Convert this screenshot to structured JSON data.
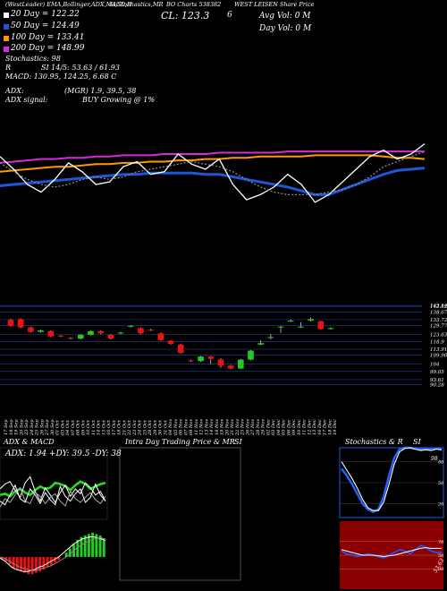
{
  "header": {
    "row1_left": "(WestLeader) EMA,Bollinger,ADX,MACD,R",
    "row1_mid": "SI,Stochastics,MR",
    "row1_right": "BO Charts 538382",
    "row1_far": "WEST LEISEN Share Price",
    "cl_label": "CL: 123.3",
    "cl_num": "6",
    "avg_vol": "Avg Vol: 0  M",
    "day_vol": "Day Vol: 0  M",
    "legend": [
      {
        "label": "20  Day = 122.22",
        "color": "#ffffff"
      },
      {
        "label": "50  Day = 124.49",
        "color": "#1e56d8"
      },
      {
        "label": "100  Day = 133.41",
        "color": "#ff9900"
      },
      {
        "label": "200  Day = 148.99",
        "color": "#d62bd6"
      }
    ],
    "stoch": "Stochastics: 98",
    "rsi_prefix": "R",
    "rsi": "SI 14/5: 53.63 / 61.93",
    "macd": "MACD: 130.95,  124.25,  6.68  C",
    "adx": "ADX:",
    "adx_mid": "(MGR) 1.9,  39.5,  38",
    "adx_signal": "ADX  signal:",
    "buy": "BUY Growing @ 1%"
  },
  "colors": {
    "up": "#22cc22",
    "down": "#ee1111",
    "grid": "#1f3fb0"
  },
  "chart_data": [
    {
      "type": "line",
      "panel": "moving averages",
      "ylim": [
        0,
        100
      ],
      "series": [
        {
          "color": "#d62bd6",
          "values": [
            55,
            56,
            57,
            58,
            58,
            59,
            59,
            60,
            60,
            61,
            61,
            61,
            62,
            62,
            62,
            62,
            63,
            63,
            63,
            63,
            63,
            64,
            64,
            64,
            64,
            64,
            64,
            64,
            64,
            64,
            64,
            64
          ]
        },
        {
          "color": "#ff9900",
          "values": [
            48,
            49,
            50,
            51,
            52,
            52,
            53,
            54,
            54,
            55,
            55,
            56,
            56,
            57,
            57,
            58,
            58,
            59,
            59,
            60,
            60,
            60,
            60,
            61,
            61,
            61,
            61,
            61,
            60,
            59,
            59,
            58
          ]
        },
        {
          "color": "#1e56d8",
          "values": [
            37,
            38,
            39,
            40,
            41,
            42,
            43,
            44,
            45,
            46,
            46,
            47,
            47,
            47,
            47,
            46,
            46,
            44,
            42,
            40,
            38,
            36,
            33,
            30,
            30,
            34,
            38,
            42,
            46,
            49,
            50,
            51
          ]
        },
        {
          "color": "#ffffff",
          "values": [
            60,
            50,
            38,
            32,
            42,
            55,
            48,
            38,
            40,
            52,
            56,
            46,
            48,
            62,
            54,
            50,
            58,
            38,
            26,
            30,
            36,
            46,
            38,
            24,
            30,
            40,
            50,
            60,
            65,
            58,
            62,
            70
          ]
        },
        {
          "color": "#888888",
          "values": [
            55,
            48,
            42,
            38,
            36,
            38,
            42,
            44,
            42,
            44,
            48,
            50,
            52,
            54,
            56,
            54,
            52,
            48,
            42,
            36,
            32,
            30,
            30,
            30,
            32,
            34,
            38,
            44,
            52,
            56,
            60,
            64
          ]
        }
      ]
    },
    {
      "type": "candlestick",
      "panel": "price",
      "x": [
        "17 Sep",
        "18 Sep",
        "19 Sep",
        "20 Sep",
        "23 Sep",
        "24 Sep",
        "25 Sep",
        "26 Sep",
        "27 Sep",
        "30 Sep",
        "01 Oct",
        "03 Oct",
        "04 Oct",
        "07 Oct",
        "08 Oct",
        "09 Oct",
        "10 Oct",
        "11 Oct",
        "14 Oct",
        "15 Oct",
        "16 Oct",
        "17 Oct",
        "18 Oct",
        "21 Oct",
        "22 Oct",
        "23 Oct",
        "24 Oct",
        "25 Oct",
        "28 Oct",
        "29 Oct",
        "30 Oct",
        "31 Oct",
        "04 Nov",
        "05 Nov",
        "06 Nov",
        "07 Nov",
        "08 Nov",
        "11 Nov",
        "12 Nov",
        "13 Nov",
        "14 Nov",
        "18 Nov",
        "19 Nov",
        "20 Nov",
        "21 Nov",
        "22 Nov",
        "25 Nov",
        "26 Nov",
        "27 Nov",
        "28 Nov",
        "29 Nov",
        "02 Dec",
        "03 Dec",
        "04 Dec",
        "05 Dec",
        "06 Dec",
        "09 Dec",
        "10 Dec",
        "11 Dec",
        "12 Dec",
        "13 Dec",
        "16 Dec",
        "17 Dec",
        "18 Dec",
        "19 Dec"
      ],
      "y_ticks": [
        143.14,
        142.52,
        138.67,
        133.72,
        129.77,
        123.63,
        118.9,
        113.91,
        109.96,
        104,
        99.05,
        93.61,
        90.28
      ],
      "ylim": [
        90,
        145
      ],
      "candles": [
        {
          "o": 133.5,
          "c": 129.5,
          "h": 134.2,
          "l": 129.0
        },
        {
          "o": 134.0,
          "c": 128.5,
          "h": 134.5,
          "l": 128.0
        },
        {
          "o": 128.5,
          "c": 125.5,
          "h": 129.0,
          "l": 125.0
        },
        {
          "o": 125.5,
          "c": 126.5,
          "h": 127.0,
          "l": 125.0
        },
        {
          "o": 126.0,
          "c": 122.5,
          "h": 126.5,
          "l": 122.0
        },
        {
          "o": 123.0,
          "c": 122.5,
          "h": 123.5,
          "l": 122.0
        },
        {
          "o": 121.5,
          "c": 121.0,
          "h": 122.0,
          "l": 120.5
        },
        {
          "o": 121.0,
          "c": 123.5,
          "h": 124.0,
          "l": 120.5
        },
        {
          "o": 123.5,
          "c": 126.0,
          "h": 126.5,
          "l": 123.0
        },
        {
          "o": 126.0,
          "c": 124.5,
          "h": 126.5,
          "l": 124.0
        },
        {
          "o": 123.5,
          "c": 121.0,
          "h": 124.0,
          "l": 120.5
        },
        {
          "o": 124.5,
          "c": 125.0,
          "h": 125.5,
          "l": 124.0
        },
        {
          "o": 129.0,
          "c": 129.5,
          "h": 130.0,
          "l": 128.5
        },
        {
          "o": 128.0,
          "c": 124.5,
          "h": 128.5,
          "l": 124.0
        },
        {
          "o": 127.0,
          "c": 126.5,
          "h": 127.5,
          "l": 126.0
        },
        {
          "o": 124.5,
          "c": 120.0,
          "h": 125.0,
          "l": 119.5
        },
        {
          "o": 119.5,
          "c": 117.5,
          "h": 120.0,
          "l": 117.0
        },
        {
          "o": 117.0,
          "c": 111.5,
          "h": 117.5,
          "l": 111.0
        },
        {
          "o": 106.5,
          "c": 106.0,
          "h": 107.0,
          "l": 105.5
        },
        {
          "o": 106.0,
          "c": 109.0,
          "h": 109.5,
          "l": 105.5
        },
        {
          "o": 109.0,
          "c": 107.5,
          "h": 109.5,
          "l": 104.0
        },
        {
          "o": 107.0,
          "c": 103.0,
          "h": 108.0,
          "l": 101.5
        },
        {
          "o": 103.0,
          "c": 101.0,
          "h": 103.5,
          "l": 100.5
        },
        {
          "o": 101.0,
          "c": 107.0,
          "h": 107.5,
          "l": 100.5
        },
        {
          "o": 107.0,
          "c": 113.0,
          "h": 113.5,
          "l": 106.5
        },
        {
          "o": 117.0,
          "c": 118.0,
          "h": 120.0,
          "l": 116.5
        },
        {
          "o": 121.5,
          "c": 122.0,
          "h": 124.0,
          "l": 120.5
        },
        {
          "o": 128.5,
          "c": 129.0,
          "h": 129.5,
          "l": 125.0
        },
        {
          "o": 132.5,
          "c": 133.0,
          "h": 134.0,
          "l": 132.0
        },
        {
          "o": 128.5,
          "c": 129.0,
          "h": 132.0,
          "l": 128.0
        },
        {
          "o": 133.0,
          "c": 134.0,
          "h": 135.0,
          "l": 132.5
        },
        {
          "o": 132.5,
          "c": 127.5,
          "h": 133.0,
          "l": 127.0
        },
        {
          "o": 127.5,
          "c": 128.0,
          "h": 128.5,
          "l": 127.0
        }
      ]
    },
    {
      "type": "line",
      "panel": "ADX & MACD",
      "title_left": "ADX  & MACD",
      "label": "ADX: 1.94  +DY: 39.5  -DY: 38",
      "ylim": [
        0,
        100
      ],
      "series": [
        {
          "color": "#22dd22",
          "values": [
            40,
            42,
            38,
            46,
            50,
            44,
            40,
            48,
            54,
            50,
            52,
            60,
            58,
            55,
            48,
            56,
            62,
            58,
            50,
            54,
            58,
            60
          ]
        },
        {
          "color": "#ffffff",
          "values": [
            50,
            58,
            62,
            48,
            36,
            60,
            70,
            46,
            30,
            52,
            40,
            28,
            44,
            56,
            38,
            50,
            42,
            60,
            52,
            40,
            46,
            30
          ]
        },
        {
          "color": "#aaaaaa",
          "values": [
            20,
            34,
            28,
            40,
            52,
            30,
            26,
            44,
            38,
            26,
            36,
            42,
            30,
            22,
            46,
            34,
            28,
            36,
            44,
            32,
            26,
            38
          ]
        },
        {
          "color": "#ffffff",
          "values": [
            30,
            24,
            40,
            56,
            34,
            28,
            50,
            40,
            26,
            44,
            32,
            24,
            54,
            38,
            30,
            42,
            50,
            28,
            36,
            58,
            40,
            30
          ]
        }
      ],
      "macd_hist": [
        -2,
        -3,
        -5,
        -8,
        -9,
        -10,
        -11,
        -12,
        -12,
        -11,
        -10,
        -9,
        -7,
        -6,
        -4,
        -2,
        0,
        3,
        6,
        9,
        12,
        14,
        15,
        16,
        17,
        16,
        15,
        12
      ],
      "macd_lines": [
        {
          "color": "#ffffff",
          "values": [
            -1,
            -3,
            -6,
            -9,
            -11,
            -12,
            -13,
            -13,
            -12,
            -11,
            -9,
            -8,
            -6,
            -4,
            -2,
            0,
            3,
            6,
            9,
            12,
            14,
            16,
            17,
            18,
            18,
            17,
            16,
            15
          ]
        },
        {
          "color": "#888888",
          "values": [
            0,
            -1,
            -3,
            -5,
            -7,
            -9,
            -10,
            -11,
            -12,
            -12,
            -11,
            -10,
            -9,
            -8,
            -6,
            -4,
            -2,
            0,
            3,
            6,
            9,
            11,
            13,
            15,
            16,
            17,
            17,
            16
          ]
        }
      ]
    },
    {
      "type": "line",
      "panel": "Intra Day Trading Price & MRSI",
      "title": "Intra  Day Trading Price  & MR",
      "title2": "SI",
      "series": []
    },
    {
      "type": "line",
      "panel": "Stochastics & RSI",
      "title": "Stochastics & R",
      "title2": "SI",
      "stoch_ticks": [
        "20",
        "50",
        "80"
      ],
      "stoch_value_label": "98",
      "rsi_ticks": [
        "30",
        "50",
        "70"
      ],
      "rsi_value_label": "53.63",
      "ylim": [
        0,
        100
      ],
      "series": [
        {
          "color": "#2266ff",
          "values": [
            70,
            60,
            48,
            34,
            20,
            12,
            8,
            12,
            30,
            60,
            85,
            98,
            100,
            100,
            99,
            98,
            98,
            98,
            99,
            98
          ]
        },
        {
          "color": "#ffffff",
          "values": [
            80,
            68,
            56,
            42,
            26,
            14,
            10,
            10,
            22,
            48,
            76,
            94,
            99,
            100,
            98,
            96,
            97,
            96,
            98,
            97
          ]
        }
      ],
      "rsi_series": [
        {
          "color": "#2255ee",
          "values": [
            56,
            52,
            50,
            48,
            50,
            52,
            50,
            48,
            46,
            50,
            54,
            58,
            56,
            52,
            58,
            64,
            62,
            56,
            54,
            54
          ]
        },
        {
          "color": "#ffffff",
          "values": [
            58,
            56,
            54,
            52,
            50,
            50,
            50,
            49,
            48,
            49,
            50,
            52,
            54,
            56,
            58,
            60,
            61,
            60,
            60,
            60
          ]
        }
      ]
    }
  ]
}
